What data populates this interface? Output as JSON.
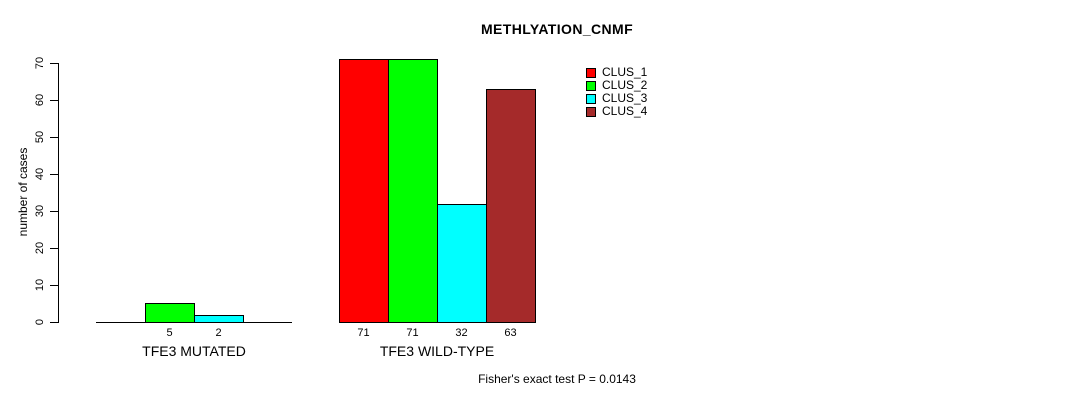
{
  "chart_data": {
    "type": "bar",
    "title": "METHLYATION_CNMF",
    "ylabel": "number of cases",
    "xlabel": "",
    "ylim": [
      0,
      70
    ],
    "yticks": [
      0,
      10,
      20,
      30,
      40,
      50,
      60,
      70
    ],
    "grid": false,
    "background": "#FFFFFF",
    "axis_color": "#000000",
    "categories": [
      "TFE3 MUTATED",
      "TFE3 WILD-TYPE"
    ],
    "series": [
      {
        "name": "CLUS_1",
        "color": "#FF0000",
        "values": [
          0,
          71
        ]
      },
      {
        "name": "CLUS_2",
        "color": "#00FF00",
        "values": [
          5,
          71
        ]
      },
      {
        "name": "CLUS_3",
        "color": "#00FFFF",
        "values": [
          2,
          32
        ]
      },
      {
        "name": "CLUS_4",
        "color": "#A52A2A",
        "values": [
          0,
          63
        ]
      }
    ],
    "visible_bar_labels": [
      [
        "5",
        "2"
      ],
      [
        "71",
        "71",
        "32",
        "63"
      ]
    ],
    "legend": {
      "position": "top-right",
      "entries": [
        "CLUS_1",
        "CLUS_2",
        "CLUS_3",
        "CLUS_4"
      ]
    },
    "footer": "Fisher's exact test P = 0.0143"
  }
}
